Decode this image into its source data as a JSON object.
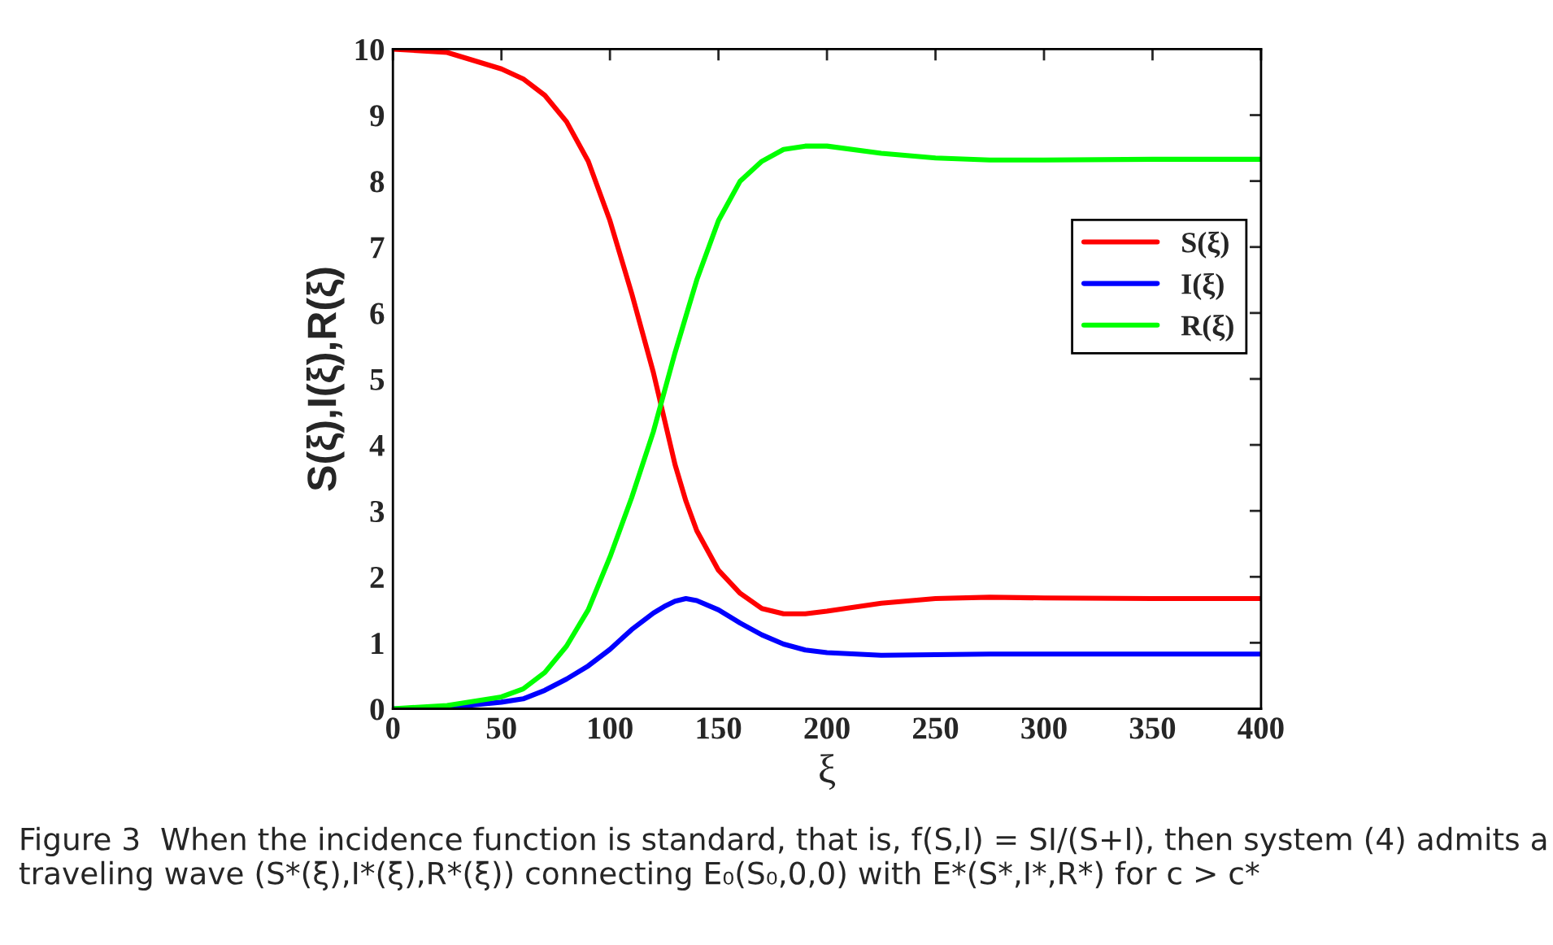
{
  "chart_data": {
    "type": "line",
    "xlabel": "ξ",
    "ylabel": "S(ξ),I(ξ),R(ξ)",
    "x": [
      0,
      25,
      50,
      60,
      70,
      80,
      90,
      100,
      110,
      120,
      125,
      130,
      135,
      140,
      150,
      160,
      170,
      180,
      190,
      200,
      225,
      250,
      275,
      300,
      350,
      400
    ],
    "series": [
      {
        "name": "S(ξ)",
        "color": "#ff0000",
        "values": [
          10,
          9.95,
          9.7,
          9.55,
          9.3,
          8.9,
          8.3,
          7.4,
          6.3,
          5.1,
          4.4,
          3.7,
          3.15,
          2.7,
          2.1,
          1.75,
          1.52,
          1.44,
          1.44,
          1.48,
          1.6,
          1.67,
          1.69,
          1.68,
          1.67,
          1.67
        ]
      },
      {
        "name": "I(ξ)",
        "color": "#0000ff",
        "values": [
          0,
          0.02,
          0.1,
          0.15,
          0.28,
          0.45,
          0.65,
          0.9,
          1.2,
          1.45,
          1.55,
          1.63,
          1.67,
          1.64,
          1.5,
          1.3,
          1.12,
          0.98,
          0.89,
          0.85,
          0.81,
          0.82,
          0.83,
          0.83,
          0.83,
          0.83
        ]
      },
      {
        "name": "R(ξ)",
        "color": "#00ff00",
        "values": [
          0,
          0.05,
          0.18,
          0.3,
          0.55,
          0.95,
          1.5,
          2.3,
          3.2,
          4.2,
          4.8,
          5.4,
          5.95,
          6.5,
          7.4,
          8.0,
          8.3,
          8.48,
          8.53,
          8.53,
          8.42,
          8.35,
          8.32,
          8.32,
          8.33,
          8.33
        ]
      }
    ],
    "xlim": [
      0,
      400
    ],
    "xticks": [
      0,
      50,
      100,
      150,
      200,
      250,
      300,
      350,
      400
    ],
    "ylim": [
      0,
      10
    ],
    "yticks": [
      0,
      1,
      2,
      3,
      4,
      5,
      6,
      7,
      8,
      9,
      10
    ],
    "grid": false,
    "legend": "right",
    "marker": "none",
    "line_style": "solid",
    "annotations": [
      "Figure 3  When the incidence function is standard, that is, f(S,I) = SI/(S+I), then system (4) admits a traveling wave (S*(ξ),I*(ξ),R*(ξ)) connecting E₀(S₀,0,0) with E*(S*,I*,R*) for c > c*"
    ]
  }
}
